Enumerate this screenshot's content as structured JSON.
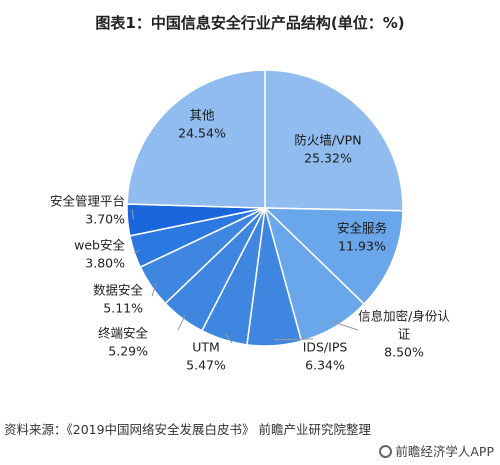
{
  "title": "图表1：中国信息安全行业产品结构(单位：%)",
  "source": "资料来源：《2019中国网络安全发展白皮书》 前瞻产业研究院整理",
  "brand": "前瞻经济学人APP",
  "chart_data": {
    "type": "pie",
    "unit": "%",
    "slices": [
      {
        "label": "防火墙/VPN",
        "value": 25.32,
        "display": "25.32%",
        "color": "#90bcef"
      },
      {
        "label": "安全服务",
        "value": 11.93,
        "display": "11.93%",
        "color": "#6aa6ea"
      },
      {
        "label": "信息加密/身份认证",
        "value": 8.5,
        "display": "8.50%",
        "color": "#6aa6ea"
      },
      {
        "label": "IDS/IPS",
        "value": 6.34,
        "display": "6.34%",
        "color": "#3f86e0"
      },
      {
        "label": "UTM",
        "value": 5.47,
        "display": "5.47%",
        "color": "#3f86e0"
      },
      {
        "label": "终端安全",
        "value": 5.29,
        "display": "5.29%",
        "color": "#3f86e0"
      },
      {
        "label": "数据安全",
        "value": 5.11,
        "display": "5.11%",
        "color": "#3f86e0"
      },
      {
        "label": "web安全",
        "value": 3.8,
        "display": "3.80%",
        "color": "#2a78e0"
      },
      {
        "label": "安全管理平台",
        "value": 3.7,
        "display": "3.70%",
        "color": "#1a66dc"
      },
      {
        "label": "其他",
        "value": 24.54,
        "display": "24.54%",
        "color": "#90bcef"
      }
    ]
  }
}
